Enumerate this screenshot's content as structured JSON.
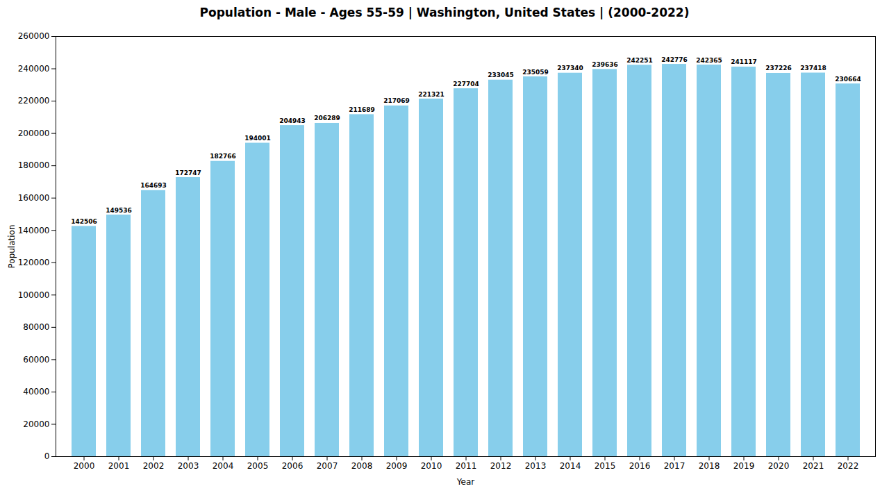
{
  "chart_data": {
    "type": "bar",
    "title": "Population - Male - Ages 55-59 | Washington, United States |  (2000-2022)",
    "xlabel": "Year",
    "ylabel": "Population",
    "categories": [
      "2000",
      "2001",
      "2002",
      "2003",
      "2004",
      "2005",
      "2006",
      "2007",
      "2008",
      "2009",
      "2010",
      "2011",
      "2012",
      "2013",
      "2014",
      "2015",
      "2016",
      "2017",
      "2018",
      "2019",
      "2020",
      "2021",
      "2022"
    ],
    "values": [
      142506,
      149536,
      164693,
      172747,
      182766,
      194001,
      204943,
      206289,
      211689,
      217069,
      221321,
      227704,
      233045,
      235059,
      237340,
      239636,
      242251,
      242776,
      242365,
      241117,
      237226,
      237418,
      230664
    ],
    "color": "#87CEEB",
    "ylim": [
      0,
      260000
    ],
    "yticks": [
      0,
      20000,
      40000,
      60000,
      80000,
      100000,
      120000,
      140000,
      160000,
      180000,
      200000,
      220000,
      240000,
      260000
    ],
    "grid": false,
    "data_labels": true
  }
}
